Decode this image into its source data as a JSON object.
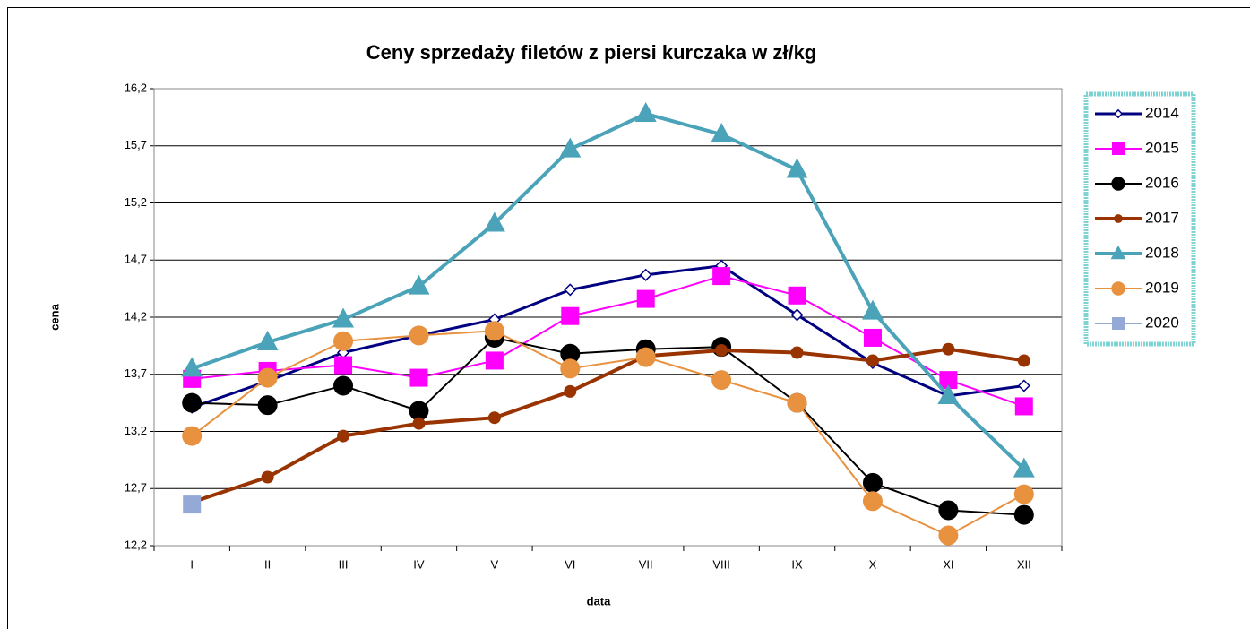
{
  "chart_data": {
    "type": "line",
    "title": "Ceny sprzedaży filetów z piersi kurczaka w zł/kg",
    "x_label": "data",
    "y_label": "cena",
    "categories": [
      "I",
      "II",
      "III",
      "IV",
      "V",
      "VI",
      "VII",
      "VIII",
      "IX",
      "X",
      "XI",
      "XII"
    ],
    "ylim": [
      12.2,
      16.2
    ],
    "yticks": [
      {
        "value": 12.2,
        "label": "12,2"
      },
      {
        "value": 12.7,
        "label": "12,7"
      },
      {
        "value": 13.2,
        "label": "13,2"
      },
      {
        "value": 13.7,
        "label": "13,7"
      },
      {
        "value": 14.2,
        "label": "14,2"
      },
      {
        "value": 14.7,
        "label": "14,7"
      },
      {
        "value": 15.2,
        "label": "15,2"
      },
      {
        "value": 15.7,
        "label": "15,7"
      },
      {
        "value": 16.2,
        "label": "16,2"
      }
    ],
    "grid": true,
    "legend": "right",
    "series": [
      {
        "name": "2014",
        "color": "#000080",
        "marker": "diamond",
        "values": [
          13.41,
          13.64,
          13.89,
          14.04,
          14.18,
          14.44,
          14.57,
          14.65,
          14.22,
          13.8,
          13.51,
          13.6
        ]
      },
      {
        "name": "2015",
        "color": "#ff00ff",
        "marker": "square",
        "values": [
          13.66,
          13.73,
          13.78,
          13.67,
          13.82,
          14.21,
          14.36,
          14.56,
          14.39,
          14.02,
          13.65,
          13.42
        ]
      },
      {
        "name": "2016",
        "color": "#000000",
        "marker": "circle",
        "values": [
          13.45,
          13.43,
          13.6,
          13.38,
          14.02,
          13.88,
          13.92,
          13.94,
          13.45,
          12.75,
          12.51,
          12.47
        ]
      },
      {
        "name": "2017",
        "color": "#993300",
        "marker": "dot",
        "values": [
          12.58,
          12.8,
          13.16,
          13.27,
          13.32,
          13.55,
          13.86,
          13.91,
          13.89,
          13.82,
          13.92,
          13.82
        ]
      },
      {
        "name": "2018",
        "color": "#4aa3b8",
        "marker": "triangle",
        "values": [
          13.75,
          13.98,
          14.18,
          14.47,
          15.02,
          15.67,
          15.98,
          15.8,
          15.49,
          14.25,
          13.51,
          12.87
        ]
      },
      {
        "name": "2019",
        "color": "#e8913e",
        "marker": "circle",
        "values": [
          13.16,
          13.67,
          13.99,
          14.04,
          14.08,
          13.75,
          13.85,
          13.65,
          13.45,
          12.59,
          12.29,
          12.65
        ]
      },
      {
        "name": "2020",
        "color": "#95a9d6",
        "marker": "square",
        "values": [
          12.56,
          null,
          null,
          null,
          null,
          null,
          null,
          null,
          null,
          null,
          null,
          null
        ]
      }
    ]
  }
}
